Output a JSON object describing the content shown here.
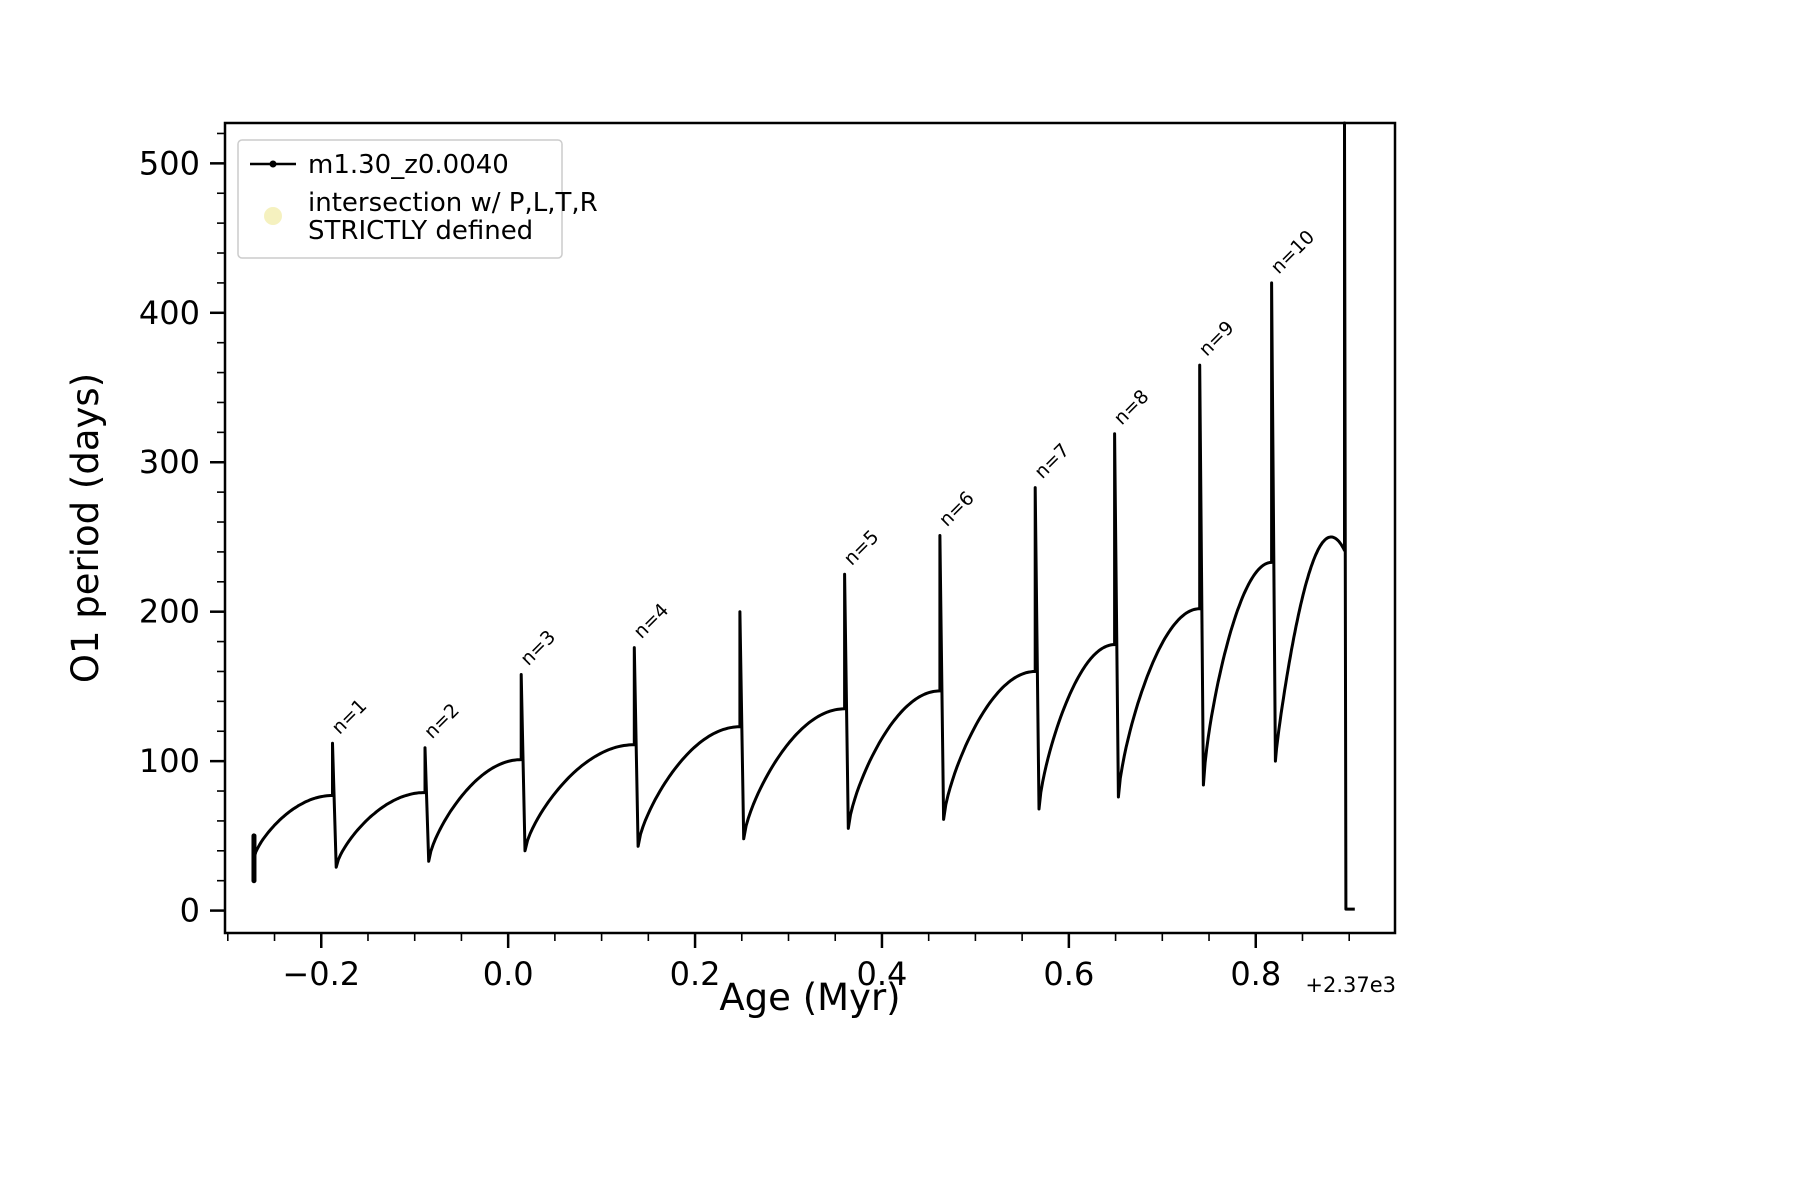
{
  "axes": {
    "xlabel": "Age (Myr)",
    "ylabel": "O1 period (days)",
    "x_offset_text": "+2.37e3",
    "xlim": [
      -0.303,
      0.949
    ],
    "ylim": [
      -15,
      527
    ],
    "x_major_ticks": [
      -0.2,
      0.0,
      0.2,
      0.4,
      0.6,
      0.8
    ],
    "x_major_labels": [
      "−0.2",
      "0.0",
      "0.2",
      "0.4",
      "0.6",
      "0.8"
    ],
    "y_major_ticks": [
      0,
      100,
      200,
      300,
      400,
      500
    ],
    "y_major_labels": [
      "0",
      "100",
      "200",
      "300",
      "400",
      "500"
    ],
    "x_minor_step": 0.05,
    "y_minor_step": 20,
    "line_color": "#000000"
  },
  "legend": {
    "entries": [
      {
        "type": "line-marker",
        "color": "#000000",
        "label": "m1.30_z0.0040"
      },
      {
        "type": "dot-marker",
        "color": "#f1ecaa",
        "label_lines": [
          "intersection w/ P,L,T,R",
          "STRICTLY defined"
        ]
      }
    ]
  },
  "chart_data": {
    "type": "line",
    "title": "",
    "xlabel": "Age (Myr)",
    "ylabel": "O1 period (days)",
    "x_axis_offset": "+2.37e3",
    "series_name": "m1.30_z0.0040",
    "xlim": [
      -0.303,
      0.949
    ],
    "ylim": [
      -15,
      527
    ],
    "grid": false,
    "legend_position": "upper left",
    "start_cluster": {
      "x": -0.272,
      "y_low": 20,
      "y_high": 50
    },
    "cycles": [
      {
        "x_start": -0.272,
        "y_start": 35,
        "x_spike": -0.188,
        "plateau": 77,
        "spike_peak": 112,
        "label": "n=1"
      },
      {
        "x_start": -0.184,
        "y_start": 29,
        "x_spike": -0.089,
        "plateau": 79,
        "spike_peak": 109,
        "label": "n=2"
      },
      {
        "x_start": -0.085,
        "y_start": 33,
        "x_spike": 0.014,
        "plateau": 101,
        "spike_peak": 158,
        "label": "n=3"
      },
      {
        "x_start": 0.018,
        "y_start": 40,
        "x_spike": 0.135,
        "plateau": 111,
        "spike_peak": 176,
        "label": "n=4"
      },
      {
        "x_start": 0.139,
        "y_start": 43,
        "x_spike": 0.248,
        "plateau": 123,
        "spike_peak": 200,
        "label": ""
      },
      {
        "x_start": 0.252,
        "y_start": 48,
        "x_spike": 0.36,
        "plateau": 135,
        "spike_peak": 225,
        "label": "n=5"
      },
      {
        "x_start": 0.364,
        "y_start": 55,
        "x_spike": 0.462,
        "plateau": 147,
        "spike_peak": 251,
        "label": "n=6"
      },
      {
        "x_start": 0.466,
        "y_start": 61,
        "x_spike": 0.564,
        "plateau": 160,
        "spike_peak": 283,
        "label": "n=7"
      },
      {
        "x_start": 0.568,
        "y_start": 68,
        "x_spike": 0.649,
        "plateau": 178,
        "spike_peak": 319,
        "label": "n=8"
      },
      {
        "x_start": 0.653,
        "y_start": 76,
        "x_spike": 0.74,
        "plateau": 202,
        "spike_peak": 365,
        "label": "n=9"
      },
      {
        "x_start": 0.744,
        "y_start": 84,
        "x_spike": 0.817,
        "plateau": 233,
        "spike_peak": 420,
        "label": "n=10"
      }
    ],
    "final": {
      "x_start": 0.821,
      "y_start": 100,
      "x_peak": 0.881,
      "peak": 250,
      "x_spike": 0.895,
      "spike_top": 527,
      "drop_to": 1,
      "x_end": 0.906
    }
  }
}
